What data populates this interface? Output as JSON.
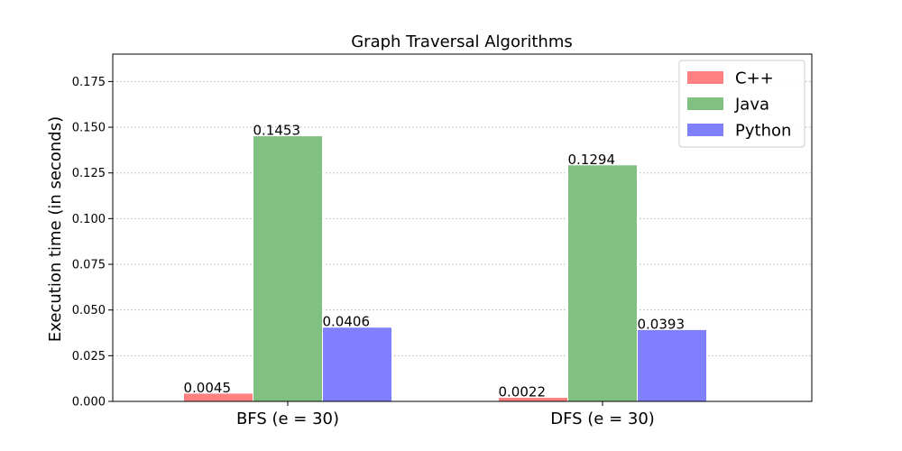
{
  "chart_data": {
    "type": "bar",
    "title": "Graph Traversal Algorithms",
    "xlabel": "",
    "ylabel": "Execution time (in seconds)",
    "categories": [
      "BFS (e = 30)",
      "DFS (e = 30)"
    ],
    "series": [
      {
        "name": "C++",
        "values": [
          0.0045,
          0.0022
        ],
        "labels": [
          "0.0045",
          "0.0022"
        ],
        "color": "#ff8080"
      },
      {
        "name": "Java",
        "values": [
          0.1453,
          0.1294
        ],
        "labels": [
          "0.1453",
          "0.1294"
        ],
        "color": "#80c080"
      },
      {
        "name": "Python",
        "values": [
          0.0406,
          0.0393
        ],
        "labels": [
          "0.0406",
          "0.0393"
        ],
        "color": "#8080ff"
      }
    ],
    "ylim": [
      0,
      0.19
    ],
    "yticks": [
      0.0,
      0.025,
      0.05,
      0.075,
      0.1,
      0.125,
      0.15,
      0.175
    ],
    "ytick_labels": [
      "0.000",
      "0.025",
      "0.050",
      "0.075",
      "0.100",
      "0.125",
      "0.150",
      "0.175"
    ],
    "grid": "y-dotted",
    "legend_position": "top-right"
  }
}
